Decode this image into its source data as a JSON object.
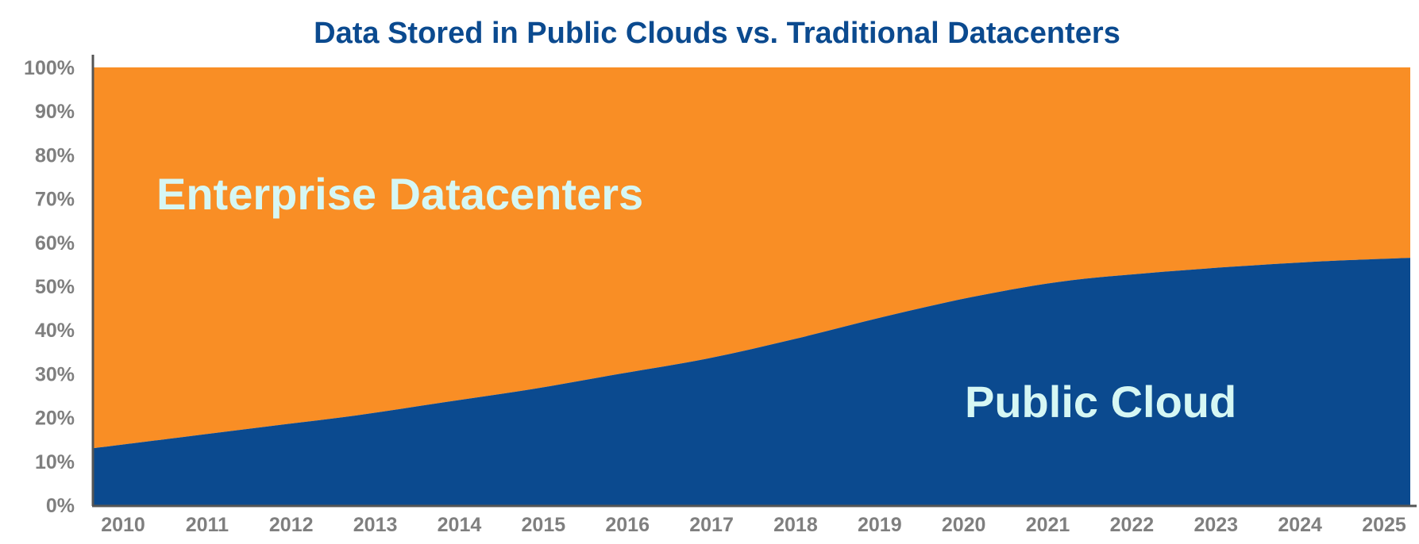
{
  "chart_data": {
    "type": "area",
    "stacked": true,
    "title": "Data Stored in Public Clouds vs. Traditional Datacenters",
    "xlabel": "",
    "ylabel": "",
    "x": [
      "2010",
      "2011",
      "2012",
      "2013",
      "2014",
      "2015",
      "2016",
      "2017",
      "2018",
      "2019",
      "2020",
      "2021",
      "2022",
      "2023",
      "2024",
      "2025"
    ],
    "ylim": [
      0,
      100
    ],
    "yticks": [
      "0%",
      "10%",
      "20%",
      "30%",
      "40%",
      "50%",
      "60%",
      "70%",
      "80%",
      "90%",
      "100%"
    ],
    "series": [
      {
        "name": "Public Cloud",
        "values": [
          13,
          15.5,
          18,
          20.5,
          23.5,
          26.5,
          30,
          33.5,
          38,
          43,
          47.5,
          51,
          53,
          54.5,
          55.7,
          56.5
        ]
      },
      {
        "name": "Enterprise Datacenters",
        "values": [
          87,
          84.5,
          82,
          79.5,
          76.5,
          73.5,
          70,
          66.5,
          62,
          57,
          52.5,
          49,
          47,
          45.5,
          44.3,
          43.5
        ]
      }
    ],
    "area_labels": [
      "Enterprise Datacenters",
      "Public Cloud"
    ],
    "grid": false,
    "legend": "none"
  },
  "colors": {
    "title": "#0b4a8f",
    "public_cloud": "#0b4a8f",
    "enterprise": "#f98e25",
    "area_label": "#d6f7f4",
    "axis": "#555555",
    "tick": "#7f7f7f"
  }
}
